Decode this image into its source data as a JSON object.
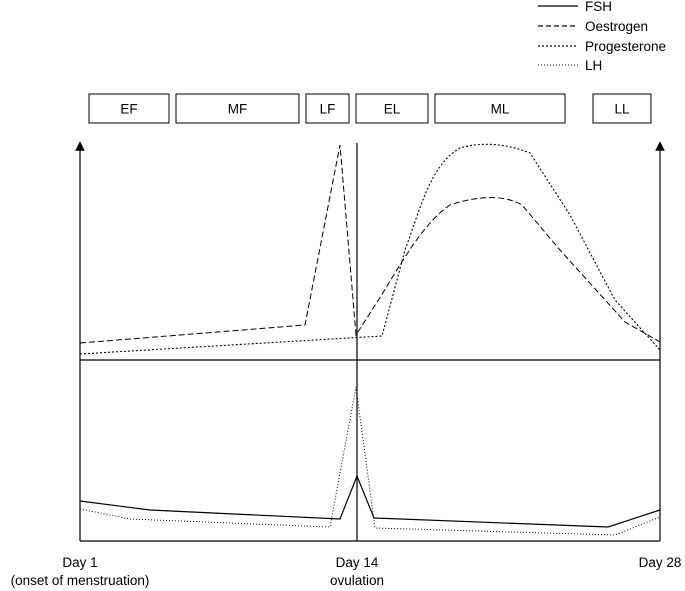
{
  "legend": [
    {
      "key": "fsh",
      "label": "FSH",
      "dash": "solid"
    },
    {
      "key": "oestrogen",
      "label": "Oestrogen",
      "dash": "dashed"
    },
    {
      "key": "progesterone",
      "label": "Progesterone",
      "dash": "dense-dotted"
    },
    {
      "key": "lh",
      "label": "LH",
      "dash": "fine-dotted"
    }
  ],
  "phases": [
    "EF",
    "MF",
    "LF",
    "EL",
    "ML",
    "LL"
  ],
  "x_axis": {
    "start_label": "Day 1",
    "start_sublabel": "(onset of menstruation)",
    "mid_label": "Day 14",
    "mid_sublabel": "ovulation",
    "end_label": "Day 28"
  }
}
